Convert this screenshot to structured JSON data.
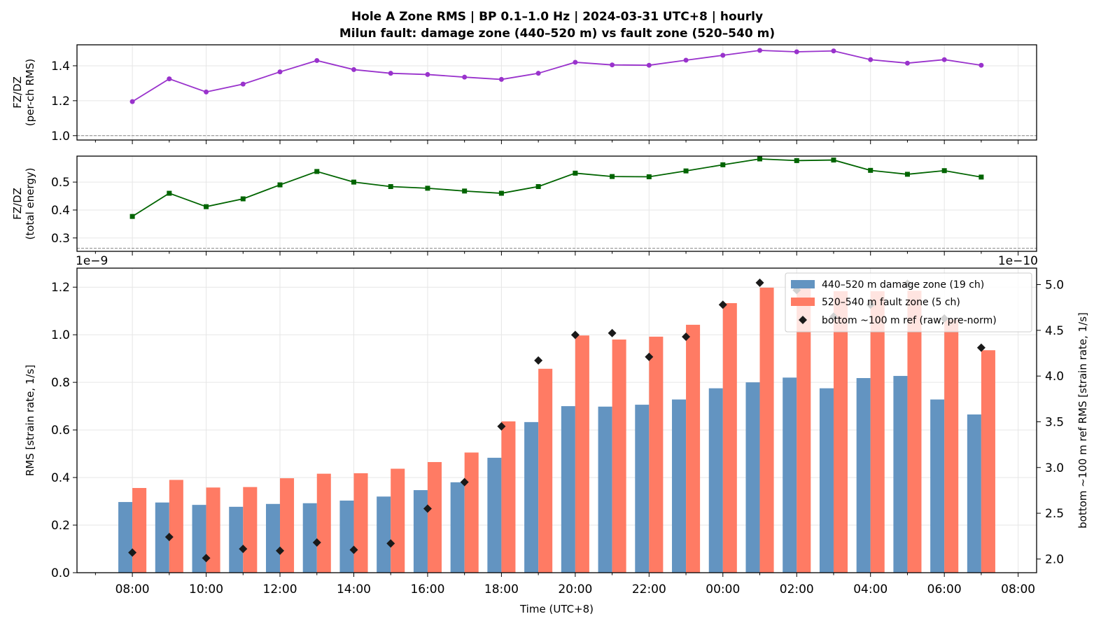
{
  "figure": {
    "title_line1": "Hole A Zone RMS  |  BP 0.1–1.0 Hz  |  2024-03-31 UTC+8  |  hourly",
    "title_line2": "Milun fault: damage zone (440–520 m) vs fault zone (520–540 m)"
  },
  "chart_data": [
    {
      "type": "line",
      "ylabel_line1": "FZ/DZ",
      "ylabel_line2": "(per-ch RMS)",
      "ylim": [
        0.975,
        1.52
      ],
      "yticks": [
        1.0,
        1.2,
        1.4
      ],
      "ytick_labels": [
        "1.0",
        "1.2",
        "1.4"
      ],
      "reference_line": 1.0,
      "grid": true,
      "color": "#9932CC",
      "marker": "circle",
      "x": [
        "2024-03-31 08:00",
        "2024-03-31 09:00",
        "2024-03-31 10:00",
        "2024-03-31 11:00",
        "2024-03-31 12:00",
        "2024-03-31 13:00",
        "2024-03-31 14:00",
        "2024-03-31 15:00",
        "2024-03-31 16:00",
        "2024-03-31 17:00",
        "2024-03-31 18:00",
        "2024-03-31 19:00",
        "2024-03-31 20:00",
        "2024-03-31 21:00",
        "2024-03-31 22:00",
        "2024-03-31 23:00",
        "2024-04-01 00:00",
        "2024-04-01 01:00",
        "2024-04-01 02:00",
        "2024-04-01 03:00",
        "2024-04-01 04:00",
        "2024-04-01 05:00",
        "2024-04-01 06:00",
        "2024-04-01 07:00"
      ],
      "values": [
        1.195,
        1.325,
        1.25,
        1.295,
        1.365,
        1.43,
        1.378,
        1.357,
        1.35,
        1.335,
        1.322,
        1.357,
        1.42,
        1.405,
        1.403,
        1.432,
        1.46,
        1.488,
        1.48,
        1.485,
        1.435,
        1.415,
        1.435,
        1.403
      ]
    },
    {
      "type": "line",
      "ylabel_line1": "FZ/DZ",
      "ylabel_line2": "(total energy)",
      "ylim": [
        0.252,
        0.593
      ],
      "yticks": [
        0.3,
        0.4,
        0.5
      ],
      "ytick_labels": [
        "0.3",
        "0.4",
        "0.5"
      ],
      "reference_line": 0.263,
      "grid": true,
      "color": "#006400",
      "marker": "square",
      "x": [
        "2024-03-31 08:00",
        "2024-03-31 09:00",
        "2024-03-31 10:00",
        "2024-03-31 11:00",
        "2024-03-31 12:00",
        "2024-03-31 13:00",
        "2024-03-31 14:00",
        "2024-03-31 15:00",
        "2024-03-31 16:00",
        "2024-03-31 17:00",
        "2024-03-31 18:00",
        "2024-03-31 19:00",
        "2024-03-31 20:00",
        "2024-03-31 21:00",
        "2024-03-31 22:00",
        "2024-03-31 23:00",
        "2024-04-01 00:00",
        "2024-04-01 01:00",
        "2024-04-01 02:00",
        "2024-04-01 03:00",
        "2024-04-01 04:00",
        "2024-04-01 05:00",
        "2024-04-01 06:00",
        "2024-04-01 07:00"
      ],
      "values": [
        0.377,
        0.46,
        0.412,
        0.44,
        0.49,
        0.538,
        0.5,
        0.484,
        0.478,
        0.468,
        0.46,
        0.484,
        0.532,
        0.52,
        0.519,
        0.54,
        0.562,
        0.583,
        0.577,
        0.579,
        0.542,
        0.528,
        0.541,
        0.518
      ]
    },
    {
      "type": "bar",
      "xlabel": "Time (UTC+8)",
      "ylabel_left": "RMS  [strain rate, 1/s]",
      "ylabel_right": "bottom ~100 m ref RMS  [strain rate, 1/s]",
      "offset_left": "1e−9",
      "offset_right": "1e−10",
      "ylim_left": [
        0,
        1.28
      ],
      "ylim_right": [
        1.85,
        5.18
      ],
      "yticks_left": [
        0.0,
        0.2,
        0.4,
        0.6,
        0.8,
        1.0,
        1.2
      ],
      "ytick_labels_left": [
        "0.0",
        "0.2",
        "0.4",
        "0.6",
        "0.8",
        "1.0",
        "1.2"
      ],
      "yticks_right": [
        2.0,
        2.5,
        3.0,
        3.5,
        4.0,
        4.5,
        5.0
      ],
      "ytick_labels_right": [
        "2.0",
        "2.5",
        "3.0",
        "3.5",
        "4.0",
        "4.5",
        "5.0"
      ],
      "xtick_labels": [
        "08:00",
        "10:00",
        "12:00",
        "14:00",
        "16:00",
        "18:00",
        "20:00",
        "22:00",
        "00:00",
        "02:00",
        "04:00",
        "06:00",
        "08:00"
      ],
      "grid": true,
      "legend_position": "top-right",
      "x": [
        "2024-03-31 08:00",
        "2024-03-31 09:00",
        "2024-03-31 10:00",
        "2024-03-31 11:00",
        "2024-03-31 12:00",
        "2024-03-31 13:00",
        "2024-03-31 14:00",
        "2024-03-31 15:00",
        "2024-03-31 16:00",
        "2024-03-31 17:00",
        "2024-03-31 18:00",
        "2024-03-31 19:00",
        "2024-03-31 20:00",
        "2024-03-31 21:00",
        "2024-03-31 22:00",
        "2024-03-31 23:00",
        "2024-04-01 00:00",
        "2024-04-01 01:00",
        "2024-04-01 02:00",
        "2024-04-01 03:00",
        "2024-04-01 04:00",
        "2024-04-01 05:00",
        "2024-04-01 06:00",
        "2024-04-01 07:00"
      ],
      "series": [
        {
          "name": "440–520 m  damage zone (19 ch)",
          "color": "#6394C1",
          "axis": "left",
          "values": [
            0.297,
            0.295,
            0.285,
            0.277,
            0.289,
            0.292,
            0.303,
            0.32,
            0.347,
            0.38,
            0.483,
            0.633,
            0.7,
            0.698,
            0.706,
            0.728,
            0.775,
            0.8,
            0.82,
            0.775,
            0.818,
            0.827,
            0.728,
            0.665
          ]
        },
        {
          "name": "520–540 m  fault zone (5 ch)",
          "color": "#FF7B64",
          "axis": "left",
          "values": [
            0.356,
            0.39,
            0.358,
            0.36,
            0.397,
            0.416,
            0.418,
            0.437,
            0.465,
            0.505,
            0.636,
            0.857,
            0.997,
            0.98,
            0.992,
            1.042,
            1.133,
            1.198,
            1.2,
            1.183,
            1.183,
            1.185,
            1.063,
            0.935
          ]
        },
        {
          "name": "bottom ~100 m ref (raw, pre-norm)",
          "color": "#1a1a1a",
          "axis": "right",
          "marker": "diamond",
          "values": [
            2.07,
            2.24,
            2.01,
            2.11,
            2.09,
            2.18,
            2.1,
            2.17,
            2.55,
            2.84,
            3.45,
            4.17,
            4.45,
            4.47,
            4.21,
            4.43,
            4.78,
            5.02,
            4.94,
            4.65,
            4.78,
            5.01,
            4.63,
            4.31
          ]
        }
      ]
    }
  ]
}
